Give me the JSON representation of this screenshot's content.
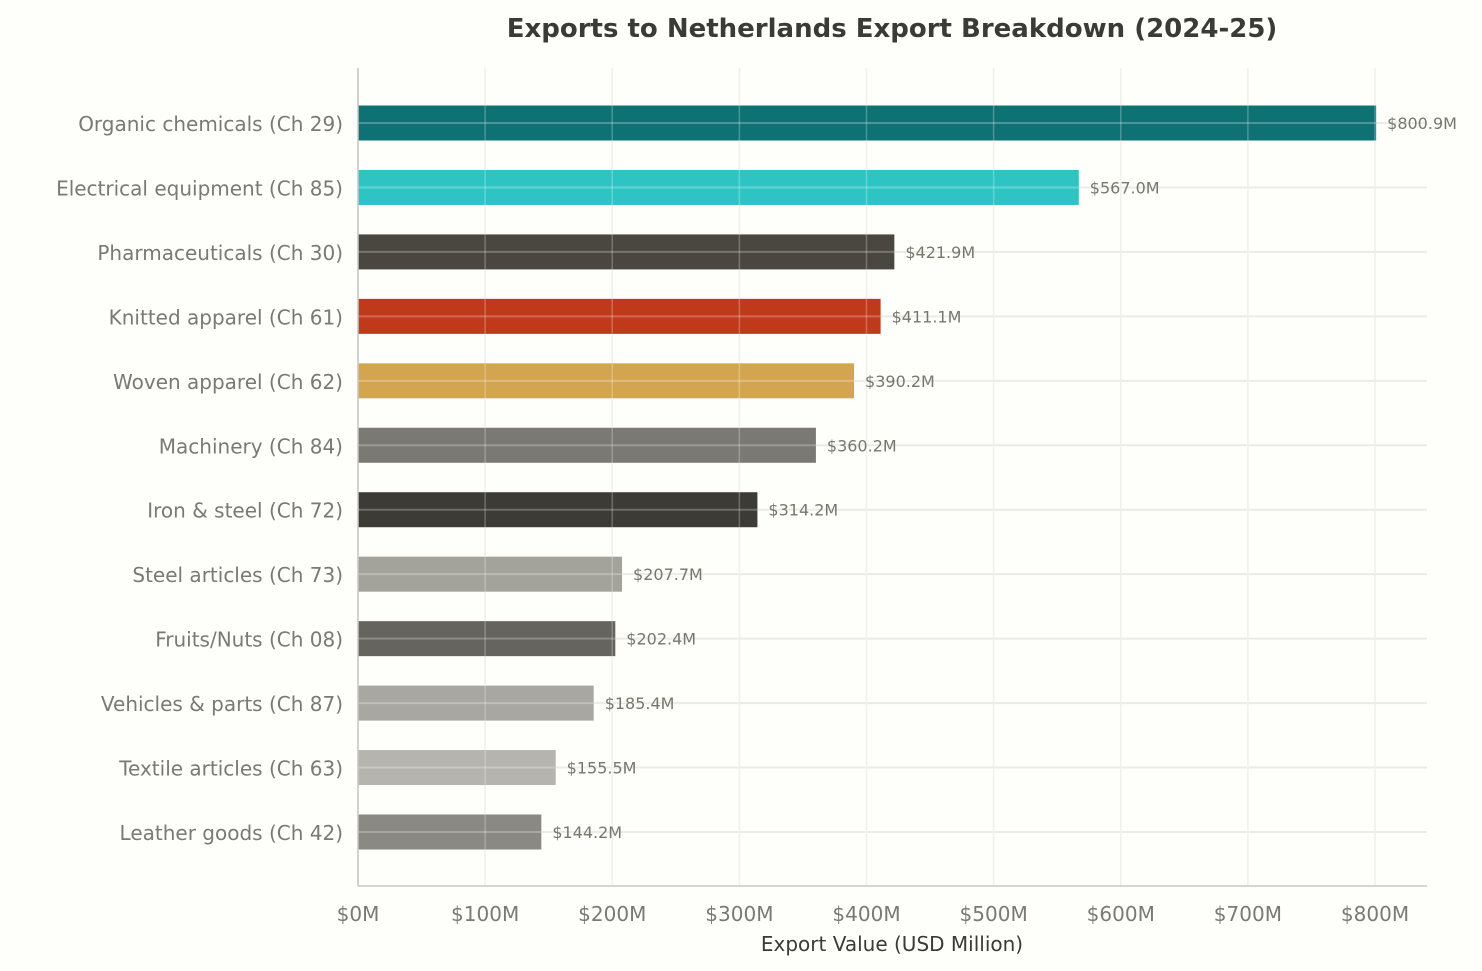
{
  "chart_data": {
    "type": "bar",
    "orientation": "horizontal",
    "title": "Exports to Netherlands Export Breakdown (2024-25)",
    "xlabel": "Export Value (USD Million)",
    "ylabel": "",
    "xlim": [
      0,
      841
    ],
    "grid": true,
    "xticks": [
      0,
      100,
      200,
      300,
      400,
      500,
      600,
      700,
      800
    ],
    "xtick_labels": [
      "$0M",
      "$100M",
      "$200M",
      "$300M",
      "$400M",
      "$500M",
      "$600M",
      "$700M",
      "$800M"
    ],
    "categories": [
      "Organic chemicals (Ch 29)",
      "Electrical equipment (Ch 85)",
      "Pharmaceuticals (Ch 30)",
      "Knitted apparel (Ch 61)",
      "Woven apparel (Ch 62)",
      "Machinery (Ch 84)",
      "Iron & steel (Ch 72)",
      "Steel articles (Ch 73)",
      "Fruits/Nuts (Ch 08)",
      "Vehicles & parts (Ch 87)",
      "Textile articles (Ch 63)",
      "Leather goods (Ch 42)"
    ],
    "values": [
      800.9,
      567.0,
      421.9,
      411.1,
      390.2,
      360.2,
      314.2,
      207.7,
      202.4,
      185.4,
      155.5,
      144.2
    ],
    "data_labels": [
      "$800.9M",
      "$567.0M",
      "$421.9M",
      "$411.1M",
      "$390.2M",
      "$360.2M",
      "$314.2M",
      "$207.7M",
      "$202.4M",
      "$185.4M",
      "$155.5M",
      "$144.2M"
    ],
    "colors": [
      "#0e7274",
      "#2ec4c4",
      "#4a4740",
      "#c0391b",
      "#d4a550",
      "#7a7973",
      "#3c3b36",
      "#a3a39c",
      "#65645e",
      "#a8a7a1",
      "#b5b4ae",
      "#8a8983"
    ]
  }
}
